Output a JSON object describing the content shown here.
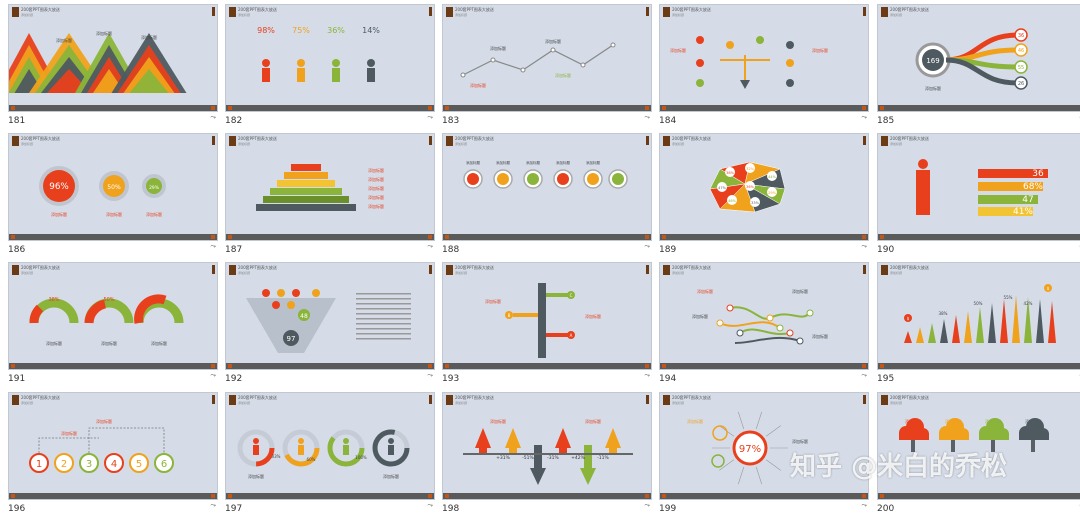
{
  "slide_title": "200套PPT图表大放送",
  "slide_subtitle": "添加标题",
  "label_add": "添加标题",
  "colors": {
    "red": "#e8401c",
    "orange": "#f0a21c",
    "green": "#8ab43a",
    "dark": "#4f5a60",
    "brown": "#6b3b16"
  },
  "slides": [
    {
      "number": "181",
      "texts": [
        "添加标题",
        "添加标题",
        "添加标题",
        "添加标题",
        "添加标题"
      ]
    },
    {
      "number": "182",
      "texts": [
        "98%",
        "75%",
        "36%",
        "14%"
      ]
    },
    {
      "number": "183",
      "texts": [
        "添加标题",
        "添加标题",
        "添加标题",
        "添加标题"
      ]
    },
    {
      "number": "184",
      "texts": [
        "添加标题",
        "添加标题",
        "添加标题",
        "添加标题"
      ]
    },
    {
      "number": "185",
      "texts": [
        "169",
        "36",
        "46",
        "55",
        "26",
        "添加标题"
      ]
    },
    {
      "number": "186",
      "texts": [
        "96%",
        "50%",
        "29%",
        "添加标题",
        "添加标题",
        "添加标题"
      ]
    },
    {
      "number": "187",
      "texts": [
        "添加标题",
        "添加标题",
        "添加标题",
        "添加标题",
        "添加标题"
      ]
    },
    {
      "number": "188",
      "texts": [
        "添加标题",
        "添加标题",
        "添加标题",
        "添加标题",
        "添加标题"
      ]
    },
    {
      "number": "189",
      "texts": [
        "38%",
        "32%",
        "44%",
        "47%",
        "36%",
        "29%",
        "46%",
        "33%"
      ]
    },
    {
      "number": "190",
      "texts": [
        "36",
        "68%",
        "47",
        "41%"
      ]
    },
    {
      "number": "191",
      "texts": [
        "38%",
        "50%",
        "78%",
        "添加标题",
        "添加标题",
        "添加标题"
      ]
    },
    {
      "number": "192",
      "texts": [
        "48",
        "97"
      ]
    },
    {
      "number": "193",
      "texts": [
        "C",
        "B",
        "A",
        "添加标题",
        "添加标题"
      ]
    },
    {
      "number": "194",
      "texts": [
        "添加标题",
        "添加标题",
        "添加标题",
        "添加标题"
      ]
    },
    {
      "number": "195",
      "texts": [
        "$",
        "$",
        "38%",
        "50%",
        "55%",
        "42%"
      ]
    },
    {
      "number": "196",
      "texts": [
        "1",
        "2",
        "3",
        "4",
        "5",
        "6",
        "添加标题",
        "添加标题"
      ]
    },
    {
      "number": "197",
      "texts": [
        "33%",
        "60%",
        "100%",
        "添加标题",
        "添加标题"
      ]
    },
    {
      "number": "198",
      "texts": [
        "+31%",
        "-51%",
        "-31%",
        "+42%",
        "-11%",
        "添加标题",
        "添加标题"
      ]
    },
    {
      "number": "199",
      "texts": [
        "97%",
        "添加标题",
        "添加标题"
      ]
    },
    {
      "number": "200",
      "texts": [
        "添加标题",
        "添加标题",
        "添加标题",
        "添加标题"
      ]
    }
  ],
  "watermark": "知乎 @米白的乔松"
}
